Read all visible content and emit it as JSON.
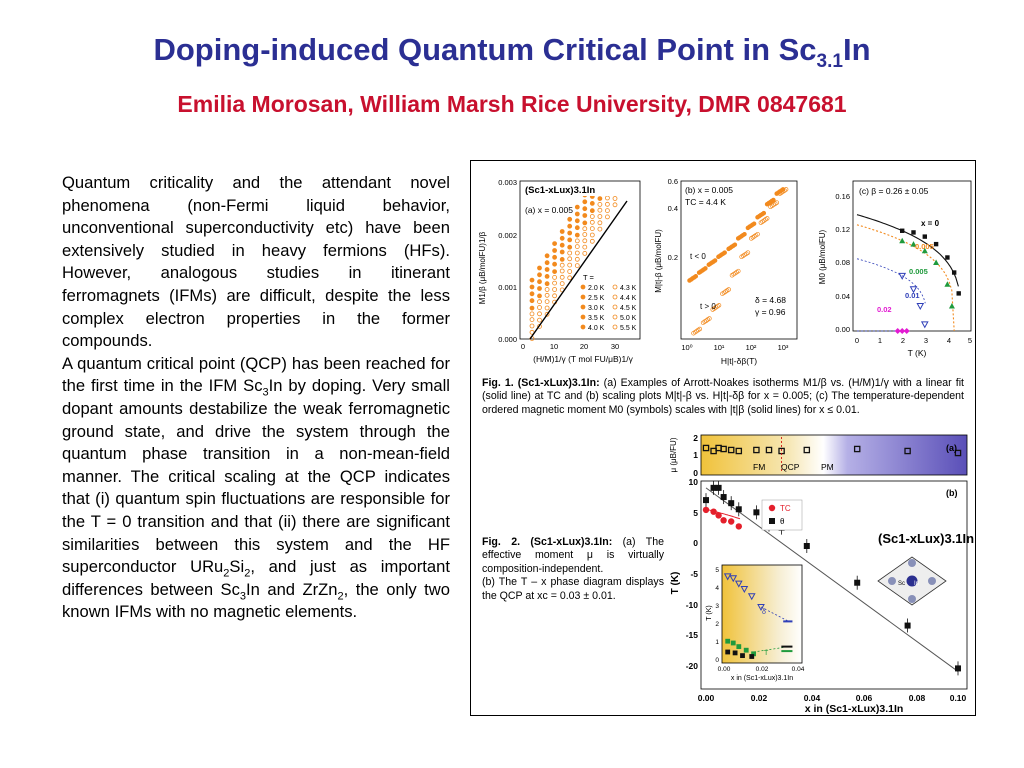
{
  "title": {
    "main": "Doping-induced Quantum Critical Point in Sc",
    "sub": "3.1",
    "suffix": "In"
  },
  "subtitle": "Emilia Morosan, William Marsh Rice University, DMR 0847681",
  "body": {
    "p1": "Quantum criticality and the attendant novel phenomena (non-Fermi liquid behavior, unconventional superconductivity etc) have been extensively studied in heavy fermions (HFs). However, analogous studies in itinerant ferromagnets (IFMs) are difficult, despite the less complex electron properties in the former compounds.",
    "p2a": "A quantum critical point (QCP) has been reached for the first time in the IFM Sc",
    "p2b": "3",
    "p2c": "In by doping. Very small dopant amounts destabilize the weak ferromagnetic ground state, and drive the system through the quantum phase transition in a non-mean-field manner. The critical scaling at the QCP indicates that (i) quantum spin fluctuations are responsible for the T = 0 transition and that (ii) there are significant similarities between this system and the HF superconductor URu",
    "p2d": "2",
    "p2e": "Si",
    "p2f": "2",
    "p2g": ", and just as important differences between Sc",
    "p2h": "3",
    "p2i": "In and ZrZn",
    "p2j": "2",
    "p2k": ", the only two known IFMs with no magnetic elements."
  },
  "fig1": {
    "caption_label": "Fig. 1. (Sc1-xLux)3.1In:",
    "caption_text": "(a) Examples of Arrott-Noakes isotherms M1/β vs. (H/M)1/γ with a linear fit (solid line) at TC and (b) scaling plots M|t|-β vs. H|t|-δβ for x = 0.005; (c) The temperature-dependent ordered magnetic moment M0 (symbols) scales with |t|β (solid lines) for x ≤ 0.01.",
    "a": {
      "compound": "(Sc1-xLux)3.1In",
      "label": "(a) x = 0.005",
      "y_ticks": [
        "0.003",
        "0.002",
        "0.001",
        "0.000"
      ],
      "x_ticks": [
        "0",
        "10",
        "20",
        "30"
      ],
      "ylabel": "M1/β (μB/molFU)1/β",
      "xlabel": "(H/M)1/γ (T mol FU/μB)1/γ",
      "legend_title": "T =",
      "legend": [
        "2.0 K",
        "2.5 K",
        "3.0 K",
        "3.5 K",
        "4.0 K",
        "4.3 K",
        "4.4 K",
        "4.5 K",
        "5.0 K",
        "5.5 K"
      ]
    },
    "b": {
      "label": "(b) x = 0.005",
      "tc": "TC = 4.4 K",
      "t_lt": "t < 0",
      "t_gt": "t > 0",
      "delta": "δ = 4.68",
      "gamma": "γ = 0.96",
      "y_ticks": [
        "0.6",
        "0.4",
        "0.2"
      ],
      "x_ticks": [
        "10⁰",
        "10¹",
        "10²",
        "10³"
      ],
      "ylabel": "M|t|-β (μB/molFU)",
      "xlabel": "H|t|-δβ(T)"
    },
    "c": {
      "label": "(c) β = 0.26 ± 0.05",
      "y_ticks": [
        "0.16",
        "0.12",
        "0.08",
        "0.04",
        "0.00"
      ],
      "x_ticks": [
        "0",
        "1",
        "2",
        "3",
        "4",
        "5"
      ],
      "ylabel": "M0 (μB/molFU)",
      "xlabel": "T (K)",
      "series_labels": [
        "x = 0",
        "0.005",
        "0.01",
        "0.02"
      ]
    }
  },
  "fig2": {
    "caption_label": "Fig. 2. (Sc1-xLux)3.1In:",
    "caption_text": "(a) The effective moment μ is virtually composition-independent.",
    "caption_text2": "(b) The T – x phase diagram displays the QCP at  xc = 0.03 ± 0.01.",
    "a": {
      "label": "(a)",
      "ylabel": "μ (μB/FU)",
      "y_ticks": [
        "2",
        "1",
        "0"
      ],
      "fm": "FM",
      "qcp": "QCP",
      "pm": "PM"
    },
    "b": {
      "label": "(b)",
      "ylabel": "T (K)",
      "y_ticks": [
        "10",
        "5",
        "0",
        "-5",
        "-10",
        "-15",
        "-20"
      ],
      "x_ticks": [
        "0.00",
        "0.02",
        "0.04",
        "0.06",
        "0.08",
        "0.10"
      ],
      "xlabel": "x in (Sc1-xLux)3.1In",
      "legend": [
        "TC",
        "θ"
      ],
      "compound": "(Sc1-xLux)3.1In",
      "inset": {
        "y_ticks": [
          "5",
          "4",
          "3",
          "2",
          "1",
          "0"
        ],
        "x_ticks": [
          "0.00",
          "0.02",
          "0.04"
        ],
        "xlabel": "x in (Sc1-xLux)3.1In",
        "ylabel": "T (K)",
        "delta": "δ",
        "t": "T",
        "sc": "Sc",
        "in": "In"
      }
    }
  },
  "colors": {
    "title": "#2b2f93",
    "subtitle": "#c8102e",
    "orange": "#f28a1e",
    "green": "#1f9a3c",
    "blue": "#2f3fb8",
    "magenta": "#e21bd2",
    "gold": "#f0c23a",
    "purple": "#5a4fb8",
    "red": "#e41f2b"
  },
  "chart_data": [
    {
      "type": "line",
      "title": "(a) x = 0.005",
      "xlabel": "(H/M)1/γ (T mol FU/μB)1/γ",
      "ylabel": "M1/β (μB/molFU)1/β",
      "xlim": [
        0,
        35
      ],
      "ylim": [
        0,
        0.003
      ],
      "series": [
        {
          "name": "2.0 K"
        },
        {
          "name": "2.5 K"
        },
        {
          "name": "3.0 K"
        },
        {
          "name": "3.5 K"
        },
        {
          "name": "4.0 K"
        },
        {
          "name": "4.3 K"
        },
        {
          "name": "4.4 K"
        },
        {
          "name": "4.5 K"
        },
        {
          "name": "5.0 K"
        },
        {
          "name": "5.5 K"
        }
      ],
      "offsets": [
        0.00075,
        0.00062,
        0.00049,
        0.00036,
        0.00022,
        0.00011,
        0.0,
        -0.00012,
        -0.00024,
        -0.00036
      ],
      "slope": 0.000105
    },
    {
      "type": "scatter",
      "title": "(b) x = 0.005",
      "xscale": "log",
      "xlim": [
        1,
        3000
      ],
      "ylim": [
        0,
        0.6
      ],
      "series": [
        {
          "name": "t < 0",
          "x": [
            1.5,
            3,
            6,
            12,
            25,
            50,
            100,
            200,
            400,
            800
          ],
          "y": [
            0.23,
            0.26,
            0.29,
            0.32,
            0.35,
            0.39,
            0.43,
            0.47,
            0.52,
            0.56
          ]
        },
        {
          "name": "t > 0",
          "x": [
            2,
            4,
            8,
            16,
            32,
            64,
            128,
            256,
            512,
            1000
          ],
          "y": [
            0.03,
            0.07,
            0.12,
            0.18,
            0.25,
            0.32,
            0.39,
            0.45,
            0.51,
            0.56
          ]
        }
      ]
    },
    {
      "type": "scatter",
      "title": "(c) β = 0.26 ± 0.05",
      "xlabel": "T (K)",
      "ylabel": "M0 (μB/molFU)",
      "xlim": [
        0,
        5
      ],
      "ylim": [
        0,
        0.17
      ],
      "series": [
        {
          "name": "x = 0",
          "x": [
            2.0,
            2.5,
            3.0,
            3.5,
            4.0,
            4.3,
            4.5
          ],
          "y": [
            0.12,
            0.118,
            0.113,
            0.104,
            0.088,
            0.07,
            0.045
          ]
        },
        {
          "name": "0.005",
          "x": [
            2.0,
            2.5,
            3.0,
            3.5,
            4.0,
            4.2
          ],
          "y": [
            0.108,
            0.104,
            0.096,
            0.082,
            0.056,
            0.03
          ]
        },
        {
          "name": "0.01",
          "x": [
            2.0,
            2.5,
            2.8,
            3.0
          ],
          "y": [
            0.066,
            0.05,
            0.03,
            0.008
          ]
        },
        {
          "name": "0.02",
          "x": [
            1.8,
            2.0,
            2.2
          ],
          "y": [
            0.0,
            0.0,
            0.0
          ]
        }
      ]
    },
    {
      "type": "scatter",
      "title": "(a)",
      "ylabel": "μ (μB/FU)",
      "xlim": [
        0,
        0.1
      ],
      "ylim": [
        0,
        2
      ],
      "series": [
        {
          "name": "μ",
          "x": [
            0.0,
            0.003,
            0.005,
            0.007,
            0.01,
            0.013,
            0.02,
            0.025,
            0.03,
            0.04,
            0.06,
            0.08,
            0.1
          ],
          "y": [
            1.35,
            1.2,
            1.35,
            1.3,
            1.25,
            1.2,
            1.25,
            1.25,
            1.2,
            1.25,
            1.3,
            1.2,
            1.1
          ]
        }
      ]
    },
    {
      "type": "scatter",
      "title": "(b)",
      "xlabel": "x in (Sc1-xLux)3.1In",
      "ylabel": "T (K)",
      "xlim": [
        0,
        0.1
      ],
      "ylim": [
        -22,
        12
      ],
      "series": [
        {
          "name": "TC",
          "x": [
            0.0,
            0.003,
            0.005,
            0.007,
            0.01,
            0.013
          ],
          "y": [
            5.9,
            5.6,
            5.0,
            4.2,
            4.0,
            3.2
          ]
        },
        {
          "name": "θ",
          "x": [
            0.0,
            0.003,
            0.005,
            0.007,
            0.01,
            0.013,
            0.02,
            0.025,
            0.03,
            0.04,
            0.06,
            0.08,
            0.1
          ],
          "y": [
            7.5,
            9.5,
            9.5,
            8.0,
            7.0,
            6.0,
            5.5,
            3.5,
            3.0,
            0.0,
            -6.0,
            -13.0,
            -20.0
          ]
        }
      ]
    }
  ]
}
